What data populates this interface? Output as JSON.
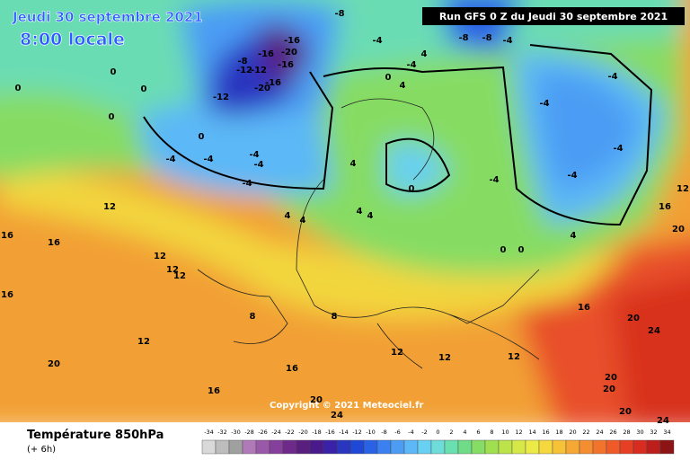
{
  "header": {
    "date": "Jeudi 30 septembre 2021",
    "time": "8:00 locale",
    "run": "Run GFS 0 Z du Jeudi 30 septembre 2021"
  },
  "footer": {
    "title": "Température 850hPa",
    "offset": "(+ 6h)",
    "copyright": "Copyright © 2021 Meteociel.fr"
  },
  "scale": {
    "values": [
      -34,
      -32,
      -30,
      -28,
      -26,
      -24,
      -22,
      -20,
      -18,
      -16,
      -14,
      -12,
      -10,
      -8,
      -6,
      -4,
      -2,
      0,
      2,
      4,
      6,
      8,
      10,
      12,
      14,
      16,
      18,
      20,
      22,
      24,
      26,
      28,
      30,
      32,
      34
    ],
    "colors": [
      "#d9d9d9",
      "#bdbdbd",
      "#a0a0a0",
      "#b07ab8",
      "#9a58a8",
      "#84409a",
      "#6e2a8a",
      "#5a1e7e",
      "#4a1a8c",
      "#3a22a8",
      "#2a36c0",
      "#2048d6",
      "#2a62e6",
      "#3a80f0",
      "#4c9cf4",
      "#5cb8f6",
      "#68d0f0",
      "#6edcd8",
      "#6ae0b0",
      "#70dc88",
      "#86dc64",
      "#a0e050",
      "#bce44a",
      "#d6e848",
      "#ecea46",
      "#f4d83e",
      "#f6c238",
      "#f6a834",
      "#f48e30",
      "#f2742c",
      "#ee5a28",
      "#e64024",
      "#d82c20",
      "#bc1e1c",
      "#8c1414"
    ]
  },
  "map": {
    "contour_labels": [
      -16,
      -20,
      -16,
      -16,
      -8,
      -12,
      -12,
      -20,
      -16,
      -12,
      -8,
      -8,
      -4,
      -8,
      -4,
      -4,
      -4,
      -4,
      -4,
      -4,
      -4,
      0,
      4,
      4,
      -4,
      -4,
      -4,
      -4,
      -4,
      0,
      4,
      4,
      4,
      4,
      4,
      12,
      16,
      12,
      12,
      12,
      16,
      16,
      8,
      8,
      12,
      20,
      16,
      16,
      12,
      12,
      12,
      16,
      20,
      24,
      20,
      20,
      24,
      24,
      20,
      20,
      0,
      0,
      4,
      0,
      0,
      0,
      0,
      0,
      12,
      20,
      16
    ]
  }
}
